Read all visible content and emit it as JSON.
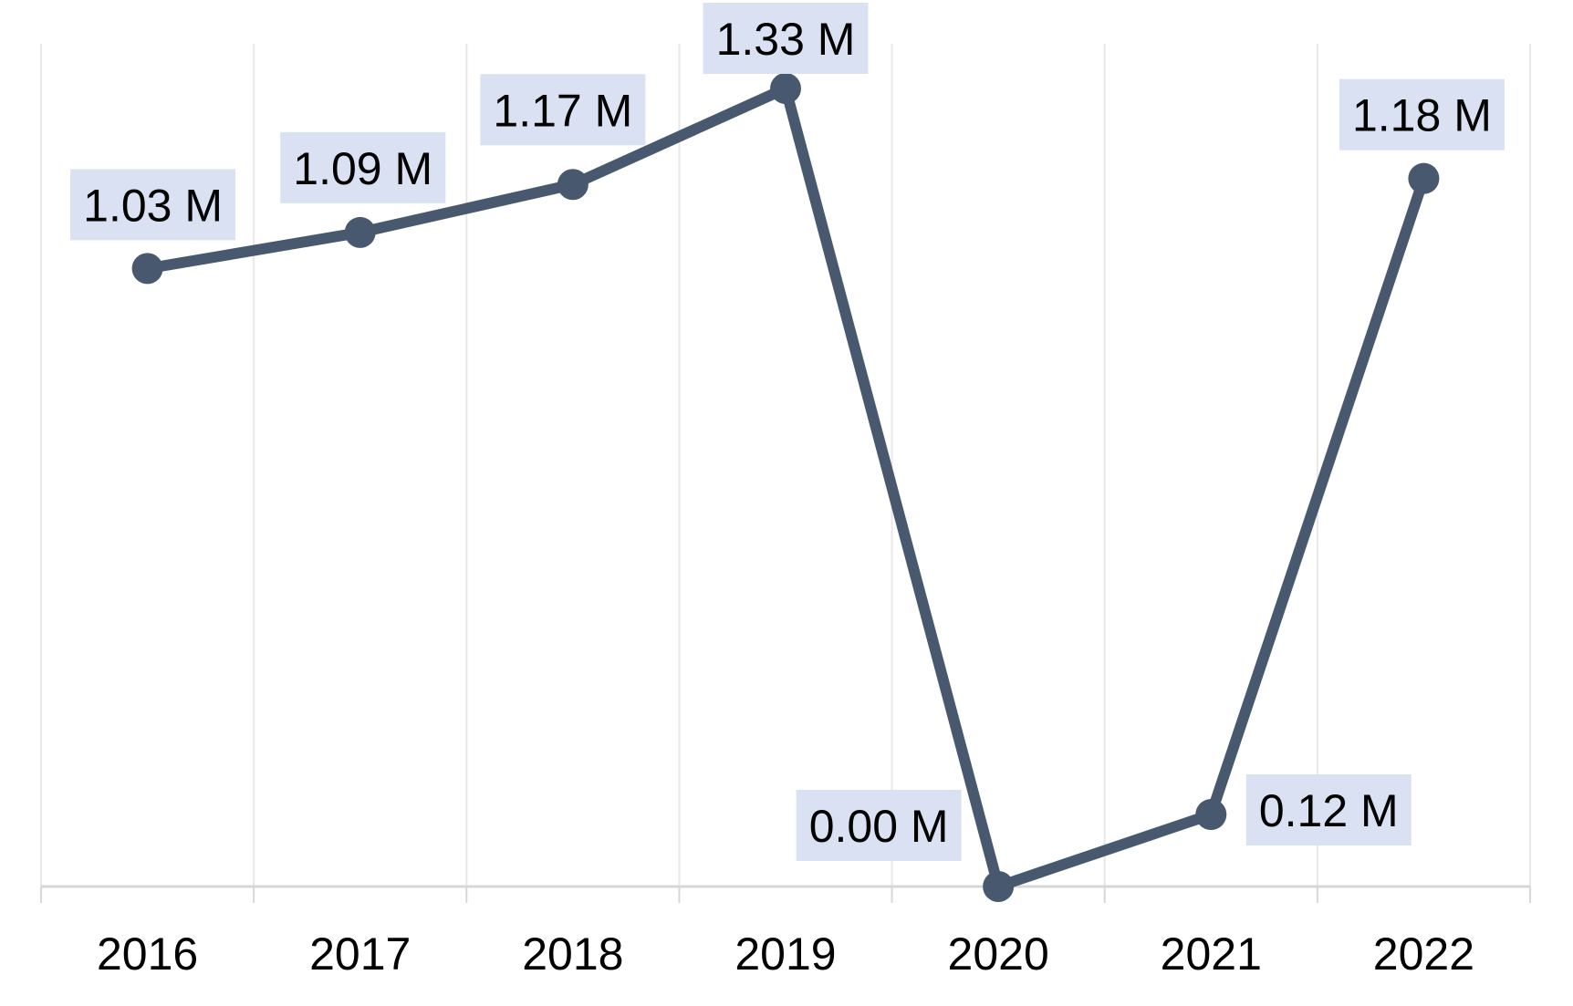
{
  "chart_data": {
    "type": "line",
    "categories": [
      "2016",
      "2017",
      "2018",
      "2019",
      "2020",
      "2021",
      "2022"
    ],
    "series": [
      {
        "name": "annual-value-millions",
        "values": [
          1.03,
          1.09,
          1.17,
          1.33,
          0.0,
          0.12,
          1.18
        ]
      }
    ],
    "data_labels": [
      "1.03 M",
      "1.09 M",
      "1.17 M",
      "1.33 M",
      "0.00 M",
      "0.12 M",
      "1.18 M"
    ],
    "unit": "M",
    "ylim": [
      0,
      1.4
    ],
    "grid": "vertical-only",
    "legend": "none",
    "y_axis_labels_visible": false,
    "label_placement": [
      "above",
      "above",
      "above",
      "above",
      "left",
      "right",
      "above"
    ],
    "colors": {
      "line": "#48596F",
      "marker": "#48596F",
      "label_bg": "#D9E1F2",
      "label_text": "#000000",
      "gridline": "#E8E8E8",
      "axis_line": "#D7D7D7",
      "tick_label": "#000000",
      "background": "#FFFFFF"
    }
  }
}
